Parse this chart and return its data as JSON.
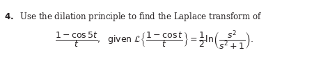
{
  "text_line1": "4. Use the dilation principle to find the Laplace transform of",
  "background_color": "#ffffff",
  "text_color": "#231f20",
  "figsize": [
    4.61,
    0.83
  ],
  "dpi": 100
}
